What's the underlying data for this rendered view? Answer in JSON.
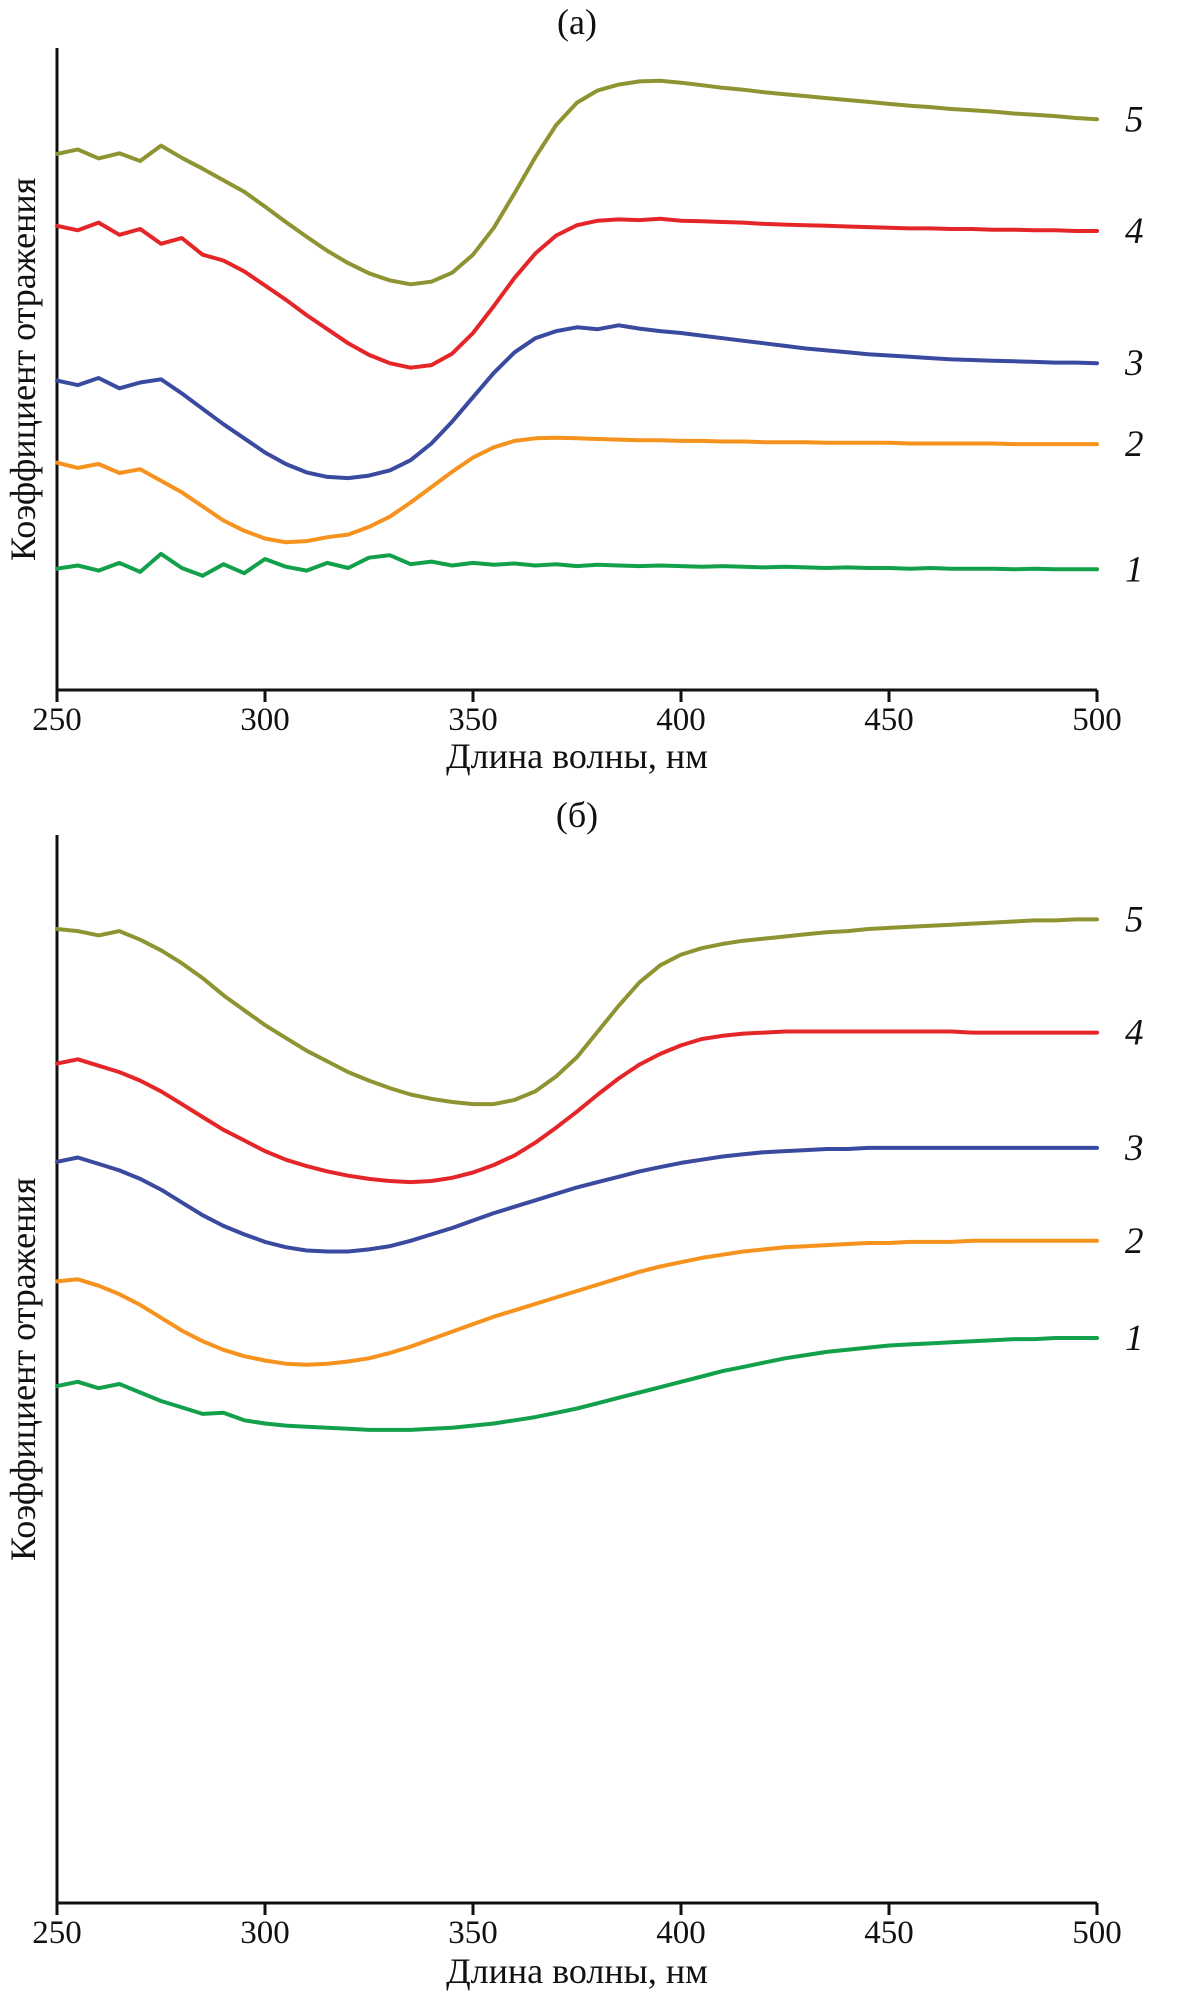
{
  "chart_data": [
    {
      "type": "line",
      "title": "(а)",
      "xlabel": "Длина волны, нм",
      "ylabel": "Коэффициент отражения",
      "xlim": [
        250,
        500
      ],
      "ylim": [
        0,
        100
      ],
      "x_ticks": [
        250,
        300,
        350,
        400,
        450,
        500
      ],
      "y_ticks": [],
      "y_units": "arbitrary units (reflectance, no y tick labels shown)",
      "grid": false,
      "legend_position": "numbers-right-of-curves",
      "x": [
        250,
        255,
        260,
        265,
        270,
        275,
        280,
        285,
        290,
        295,
        300,
        305,
        310,
        315,
        320,
        325,
        330,
        335,
        340,
        345,
        350,
        355,
        360,
        365,
        370,
        375,
        380,
        385,
        390,
        395,
        400,
        405,
        410,
        415,
        420,
        425,
        430,
        435,
        440,
        445,
        450,
        455,
        460,
        465,
        470,
        475,
        480,
        485,
        490,
        495,
        500
      ],
      "series": [
        {
          "name": "1",
          "label": "1",
          "color": "#12a04a",
          "values": [
            18.9,
            19.4,
            18.6,
            19.8,
            18.4,
            21.2,
            19.0,
            17.8,
            19.6,
            18.2,
            20.4,
            19.2,
            18.6,
            19.8,
            19.0,
            20.6,
            21.0,
            19.6,
            20.0,
            19.4,
            19.8,
            19.5,
            19.7,
            19.4,
            19.6,
            19.3,
            19.5,
            19.4,
            19.3,
            19.4,
            19.3,
            19.2,
            19.3,
            19.2,
            19.1,
            19.2,
            19.1,
            19.0,
            19.1,
            19.0,
            19.0,
            18.9,
            19.0,
            18.9,
            18.9,
            18.9,
            18.8,
            18.9,
            18.8,
            18.8,
            18.8
          ]
        },
        {
          "name": "2",
          "label": "2",
          "color": "#f6921e",
          "values": [
            35.4,
            34.6,
            35.2,
            33.8,
            34.4,
            32.6,
            30.8,
            28.6,
            26.4,
            24.8,
            23.6,
            23.0,
            23.2,
            23.8,
            24.2,
            25.4,
            27.0,
            29.2,
            31.6,
            34.0,
            36.2,
            37.8,
            38.8,
            39.2,
            39.3,
            39.2,
            39.1,
            39.0,
            38.9,
            38.9,
            38.8,
            38.8,
            38.7,
            38.7,
            38.6,
            38.6,
            38.6,
            38.5,
            38.5,
            38.5,
            38.5,
            38.4,
            38.4,
            38.4,
            38.4,
            38.4,
            38.3,
            38.3,
            38.3,
            38.3,
            38.3
          ]
        },
        {
          "name": "3",
          "label": "3",
          "color": "#3a4a9f",
          "values": [
            48.2,
            47.5,
            48.6,
            47.0,
            47.9,
            48.4,
            46.2,
            43.8,
            41.4,
            39.2,
            37.0,
            35.2,
            33.9,
            33.2,
            33.0,
            33.4,
            34.2,
            35.8,
            38.4,
            41.8,
            45.6,
            49.4,
            52.6,
            54.8,
            55.9,
            56.5,
            56.2,
            56.8,
            56.3,
            55.9,
            55.6,
            55.2,
            54.8,
            54.4,
            54.0,
            53.6,
            53.2,
            52.9,
            52.6,
            52.3,
            52.1,
            51.9,
            51.7,
            51.5,
            51.4,
            51.3,
            51.2,
            51.1,
            51.0,
            51.0,
            50.9
          ]
        },
        {
          "name": "4",
          "label": "4",
          "color": "#e52629",
          "values": [
            72.3,
            71.6,
            72.8,
            70.9,
            71.8,
            69.5,
            70.4,
            67.8,
            66.9,
            65.2,
            63.0,
            60.8,
            58.4,
            56.2,
            54.0,
            52.2,
            50.9,
            50.2,
            50.6,
            52.4,
            55.6,
            59.8,
            64.2,
            68.0,
            70.8,
            72.4,
            73.1,
            73.3,
            73.2,
            73.4,
            73.1,
            73.0,
            72.9,
            72.8,
            72.6,
            72.5,
            72.4,
            72.3,
            72.2,
            72.1,
            72.0,
            71.9,
            71.9,
            71.8,
            71.8,
            71.7,
            71.7,
            71.6,
            71.6,
            71.5,
            71.5
          ]
        },
        {
          "name": "5",
          "label": "5",
          "color": "#8f9433",
          "values": [
            83.5,
            84.2,
            82.8,
            83.6,
            82.4,
            84.8,
            82.9,
            81.2,
            79.4,
            77.6,
            75.3,
            72.9,
            70.6,
            68.4,
            66.5,
            64.9,
            63.8,
            63.2,
            63.6,
            65.0,
            67.8,
            72.0,
            77.4,
            83.0,
            88.0,
            91.5,
            93.4,
            94.3,
            94.8,
            94.9,
            94.6,
            94.2,
            93.8,
            93.5,
            93.1,
            92.8,
            92.5,
            92.2,
            91.9,
            91.6,
            91.3,
            91.0,
            90.8,
            90.5,
            90.3,
            90.1,
            89.8,
            89.6,
            89.4,
            89.1,
            88.9
          ]
        }
      ]
    },
    {
      "type": "line",
      "title": "(б)",
      "xlabel": "Длина волны, нм",
      "ylabel": "Коэффициент отражения",
      "xlim": [
        250,
        500
      ],
      "ylim": [
        0,
        100
      ],
      "x_ticks": [
        250,
        300,
        350,
        400,
        450,
        500
      ],
      "y_ticks": [],
      "y_units": "arbitrary units (reflectance, no y tick labels shown)",
      "grid": false,
      "legend_position": "numbers-right-of-curves",
      "x": [
        250,
        255,
        260,
        265,
        270,
        275,
        280,
        285,
        290,
        295,
        300,
        305,
        310,
        315,
        320,
        325,
        330,
        335,
        340,
        345,
        350,
        355,
        360,
        365,
        370,
        375,
        380,
        385,
        390,
        395,
        400,
        405,
        410,
        415,
        420,
        425,
        430,
        435,
        440,
        445,
        450,
        455,
        460,
        465,
        470,
        475,
        480,
        485,
        490,
        495,
        500
      ],
      "series": [
        {
          "name": "1",
          "label": "1",
          "color": "#12a04a",
          "values": [
            48.4,
            48.8,
            48.2,
            48.6,
            47.8,
            47.0,
            46.4,
            45.8,
            45.9,
            45.2,
            44.9,
            44.7,
            44.6,
            44.5,
            44.4,
            44.3,
            44.3,
            44.3,
            44.4,
            44.5,
            44.7,
            44.9,
            45.2,
            45.5,
            45.9,
            46.3,
            46.8,
            47.3,
            47.8,
            48.3,
            48.8,
            49.3,
            49.8,
            50.2,
            50.6,
            51.0,
            51.3,
            51.6,
            51.8,
            52.0,
            52.2,
            52.3,
            52.4,
            52.5,
            52.6,
            52.7,
            52.8,
            52.8,
            52.9,
            52.9,
            52.9
          ]
        },
        {
          "name": "2",
          "label": "2",
          "color": "#f6921e",
          "values": [
            58.2,
            58.4,
            57.8,
            57.0,
            56.0,
            54.8,
            53.6,
            52.6,
            51.8,
            51.2,
            50.8,
            50.5,
            50.4,
            50.5,
            50.7,
            51.0,
            51.5,
            52.1,
            52.8,
            53.5,
            54.2,
            54.9,
            55.5,
            56.1,
            56.7,
            57.3,
            57.9,
            58.5,
            59.1,
            59.6,
            60.0,
            60.4,
            60.7,
            61.0,
            61.2,
            61.4,
            61.5,
            61.6,
            61.7,
            61.8,
            61.8,
            61.9,
            61.9,
            61.9,
            62.0,
            62.0,
            62.0,
            62.0,
            62.0,
            62.0,
            62.0
          ]
        },
        {
          "name": "3",
          "label": "3",
          "color": "#3a4a9f",
          "values": [
            69.4,
            69.8,
            69.2,
            68.6,
            67.8,
            66.8,
            65.6,
            64.4,
            63.4,
            62.6,
            61.9,
            61.4,
            61.1,
            61.0,
            61.0,
            61.2,
            61.5,
            62.0,
            62.6,
            63.2,
            63.9,
            64.6,
            65.2,
            65.8,
            66.4,
            67.0,
            67.5,
            68.0,
            68.5,
            68.9,
            69.3,
            69.6,
            69.9,
            70.1,
            70.3,
            70.4,
            70.5,
            70.6,
            70.6,
            70.7,
            70.7,
            70.7,
            70.7,
            70.7,
            70.7,
            70.7,
            70.7,
            70.7,
            70.7,
            70.7,
            70.7
          ]
        },
        {
          "name": "4",
          "label": "4",
          "color": "#e52629",
          "values": [
            78.6,
            79.0,
            78.4,
            77.8,
            77.0,
            76.0,
            74.8,
            73.6,
            72.4,
            71.4,
            70.4,
            69.6,
            69.0,
            68.5,
            68.1,
            67.8,
            67.6,
            67.5,
            67.6,
            67.9,
            68.4,
            69.1,
            70.0,
            71.2,
            72.6,
            74.1,
            75.7,
            77.2,
            78.5,
            79.5,
            80.3,
            80.9,
            81.2,
            81.4,
            81.5,
            81.6,
            81.6,
            81.6,
            81.6,
            81.6,
            81.6,
            81.6,
            81.6,
            81.6,
            81.5,
            81.5,
            81.5,
            81.5,
            81.5,
            81.5,
            81.5
          ]
        },
        {
          "name": "5",
          "label": "5",
          "color": "#8f9433",
          "values": [
            91.2,
            91.0,
            90.6,
            91.0,
            90.2,
            89.2,
            88.0,
            86.6,
            85.0,
            83.6,
            82.2,
            81.0,
            79.8,
            78.8,
            77.8,
            77.0,
            76.3,
            75.7,
            75.3,
            75.0,
            74.8,
            74.8,
            75.2,
            76.0,
            77.4,
            79.2,
            81.6,
            84.0,
            86.2,
            87.8,
            88.8,
            89.4,
            89.8,
            90.1,
            90.3,
            90.5,
            90.7,
            90.9,
            91.0,
            91.2,
            91.3,
            91.4,
            91.5,
            91.6,
            91.7,
            91.8,
            91.9,
            92.0,
            92.0,
            92.1,
            92.1
          ]
        }
      ]
    }
  ],
  "style": {
    "axis_color": "#111111",
    "background": "#ffffff"
  }
}
